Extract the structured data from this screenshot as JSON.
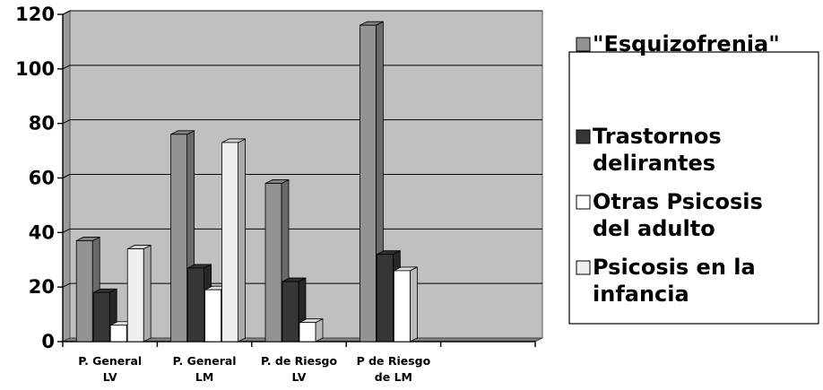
{
  "chart_data": {
    "type": "bar",
    "categories": [
      [
        "P. General",
        "LV"
      ],
      [
        "P. General",
        "LM"
      ],
      [
        "P. de Riesgo",
        "LV"
      ],
      [
        "P de Riesgo",
        "de LM"
      ],
      [
        "",
        ""
      ]
    ],
    "series": [
      {
        "name": "\"Esquizofrenia\"",
        "values": [
          37,
          76,
          58,
          116,
          null
        ]
      },
      {
        "name": "Trastornos delirantes",
        "values": [
          18,
          27,
          22,
          32,
          null
        ]
      },
      {
        "name": "Otras Psicosis del adulto",
        "values": [
          6,
          19,
          7,
          26,
          null
        ]
      },
      {
        "name": "Psicosis en la infancia",
        "values": [
          34,
          73,
          null,
          null,
          null
        ]
      }
    ],
    "legend_lines": [
      [
        "\"Esquizofrenia\""
      ],
      [
        "Trastornos",
        "delirantes"
      ],
      [
        "Otras Psicosis",
        "del adulto"
      ],
      [
        "Psicosis en la",
        "infancia"
      ]
    ],
    "yticks": [
      "0",
      "20",
      "40",
      "60",
      "80",
      "100",
      "120"
    ],
    "ylim": [
      0,
      120
    ],
    "grid": true,
    "legend_position": "right",
    "colors": {
      "series": [
        "#939393",
        "#363636",
        "#ffffff",
        "#eeeeee"
      ],
      "plot_background": "#c0c0c0",
      "floor": "#808080",
      "gridline": "#000000"
    }
  }
}
